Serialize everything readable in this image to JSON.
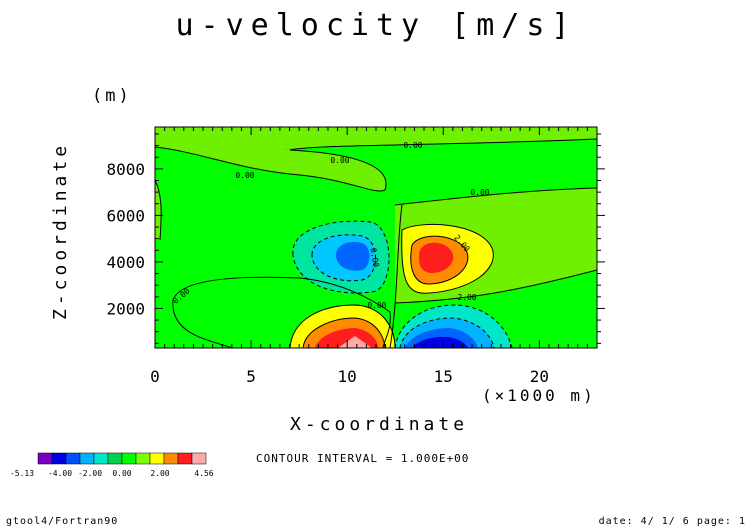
{
  "chart_data": {
    "type": "contour",
    "title": "u-velocity [m/s]",
    "xlabel": "X-coordinate",
    "xunit": "(×1000 m)",
    "ylabel": "Z-coordinate",
    "yunit": "(m)",
    "xlim": [
      0,
      23
    ],
    "ylim": [
      300,
      9800
    ],
    "xticks": [
      "0",
      "5",
      "10",
      "15",
      "20"
    ],
    "yticks": [
      "2000",
      "4000",
      "6000",
      "8000"
    ],
    "grid": false,
    "contour_interval": "CONTOUR INTERVAL = 1.000E+00",
    "contour_labels": [
      "0.00",
      "0.00",
      "0.00",
      "0.00",
      "0.00",
      "0.00",
      "2.00",
      "2.00",
      "0.00"
    ],
    "features": [
      {
        "name": "upper-negative",
        "x": 11,
        "y": 4000,
        "min": -4.0
      },
      {
        "name": "upper-positive",
        "x": 14.5,
        "y": 4200,
        "max": 4.0
      },
      {
        "name": "lower-positive",
        "x": 10.8,
        "y": 300,
        "max": 4.56
      },
      {
        "name": "lower-negative",
        "x": 14.5,
        "y": 300,
        "min": -5.13
      }
    ],
    "colorbar": {
      "labels": [
        "-5.13",
        "-4.00",
        "-2.00",
        "0.00",
        "2.00",
        "4.56"
      ],
      "colors": [
        "#7a00c8",
        "#0000e6",
        "#0050ff",
        "#00b4ff",
        "#00e6c8",
        "#00d250",
        "#00ff00",
        "#78ff00",
        "#ffff00",
        "#ff8c00",
        "#ff1e1e",
        "#ffaaaa"
      ]
    }
  },
  "footer": {
    "left": "gtool4/Fortran90",
    "right": "date: 4/ 1/ 6 page: 1"
  }
}
